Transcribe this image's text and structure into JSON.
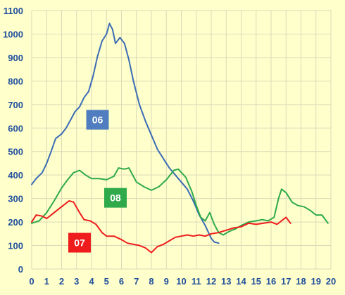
{
  "chart_data": {
    "type": "line",
    "title": "",
    "xlabel": "",
    "ylabel": "",
    "xlim": [
      0,
      20
    ],
    "ylim": [
      0,
      1100
    ],
    "x_ticks": [
      "0",
      "1",
      "2",
      "3",
      "4",
      "5",
      "6",
      "7",
      "8",
      "9",
      "10",
      "11",
      "12",
      "13",
      "14",
      "15",
      "16",
      "17",
      "18",
      "19",
      "20"
    ],
    "y_ticks": [
      "0",
      "100",
      "200",
      "300",
      "400",
      "500",
      "600",
      "700",
      "800",
      "900",
      "1000",
      "1100"
    ],
    "grid": true,
    "legend": "inline-labels",
    "series": [
      {
        "name": "06",
        "color": "#3a6bb5",
        "label_box_color": "#4f7dbf",
        "label_at": [
          4.4,
          635
        ],
        "points": [
          [
            0,
            360
          ],
          [
            0.3,
            385
          ],
          [
            0.7,
            410
          ],
          [
            1.0,
            450
          ],
          [
            1.3,
            500
          ],
          [
            1.6,
            555
          ],
          [
            2.0,
            575
          ],
          [
            2.3,
            600
          ],
          [
            2.6,
            635
          ],
          [
            2.9,
            670
          ],
          [
            3.2,
            690
          ],
          [
            3.5,
            730
          ],
          [
            3.8,
            755
          ],
          [
            4.1,
            820
          ],
          [
            4.4,
            905
          ],
          [
            4.7,
            970
          ],
          [
            5.0,
            1000
          ],
          [
            5.2,
            1045
          ],
          [
            5.4,
            1020
          ],
          [
            5.6,
            960
          ],
          [
            5.9,
            985
          ],
          [
            6.2,
            960
          ],
          [
            6.5,
            890
          ],
          [
            6.8,
            800
          ],
          [
            7.2,
            700
          ],
          [
            7.6,
            630
          ],
          [
            8.0,
            570
          ],
          [
            8.4,
            510
          ],
          [
            8.8,
            470
          ],
          [
            9.2,
            430
          ],
          [
            9.6,
            400
          ],
          [
            10.0,
            370
          ],
          [
            10.4,
            340
          ],
          [
            10.8,
            290
          ],
          [
            11.2,
            230
          ],
          [
            11.6,
            185
          ],
          [
            12.0,
            130
          ],
          [
            12.2,
            115
          ],
          [
            12.5,
            110
          ]
        ]
      },
      {
        "name": "08",
        "color": "#2eaa4a",
        "label_box_color": "#2eaa4a",
        "label_at": [
          5.6,
          303
        ],
        "points": [
          [
            0,
            195
          ],
          [
            0.5,
            205
          ],
          [
            1.0,
            240
          ],
          [
            1.5,
            290
          ],
          [
            2.0,
            345
          ],
          [
            2.4,
            380
          ],
          [
            2.8,
            410
          ],
          [
            3.2,
            420
          ],
          [
            3.6,
            400
          ],
          [
            4.0,
            385
          ],
          [
            4.5,
            385
          ],
          [
            5.0,
            380
          ],
          [
            5.5,
            395
          ],
          [
            5.8,
            430
          ],
          [
            6.2,
            425
          ],
          [
            6.5,
            430
          ],
          [
            7.0,
            370
          ],
          [
            7.5,
            350
          ],
          [
            8.0,
            335
          ],
          [
            8.5,
            350
          ],
          [
            9.0,
            380
          ],
          [
            9.5,
            420
          ],
          [
            9.8,
            425
          ],
          [
            10.3,
            390
          ],
          [
            10.7,
            330
          ],
          [
            11.0,
            270
          ],
          [
            11.3,
            220
          ],
          [
            11.6,
            205
          ],
          [
            11.9,
            240
          ],
          [
            12.2,
            190
          ],
          [
            12.5,
            155
          ],
          [
            12.8,
            145
          ],
          [
            13.2,
            160
          ],
          [
            13.6,
            170
          ],
          [
            14.0,
            185
          ],
          [
            14.5,
            200
          ],
          [
            15.0,
            205
          ],
          [
            15.4,
            210
          ],
          [
            15.8,
            205
          ],
          [
            16.2,
            220
          ],
          [
            16.5,
            300
          ],
          [
            16.7,
            340
          ],
          [
            17.0,
            325
          ],
          [
            17.4,
            285
          ],
          [
            17.8,
            270
          ],
          [
            18.2,
            265
          ],
          [
            18.6,
            250
          ],
          [
            19.0,
            230
          ],
          [
            19.4,
            230
          ],
          [
            19.8,
            195
          ]
        ]
      },
      {
        "name": "07",
        "color": "#ee1c1c",
        "label_box_color": "#ee1c1c",
        "label_at": [
          3.2,
          112
        ],
        "points": [
          [
            0,
            200
          ],
          [
            0.3,
            230
          ],
          [
            0.7,
            225
          ],
          [
            1.0,
            215
          ],
          [
            1.5,
            240
          ],
          [
            2.0,
            265
          ],
          [
            2.5,
            290
          ],
          [
            2.8,
            285
          ],
          [
            3.2,
            240
          ],
          [
            3.5,
            210
          ],
          [
            3.9,
            205
          ],
          [
            4.3,
            190
          ],
          [
            4.7,
            155
          ],
          [
            5.0,
            140
          ],
          [
            5.5,
            140
          ],
          [
            6.0,
            125
          ],
          [
            6.4,
            110
          ],
          [
            6.8,
            105
          ],
          [
            7.2,
            100
          ],
          [
            7.6,
            90
          ],
          [
            8.0,
            70
          ],
          [
            8.4,
            95
          ],
          [
            8.8,
            105
          ],
          [
            9.2,
            120
          ],
          [
            9.6,
            135
          ],
          [
            10.0,
            140
          ],
          [
            10.4,
            145
          ],
          [
            10.8,
            140
          ],
          [
            11.2,
            145
          ],
          [
            11.6,
            140
          ],
          [
            12.0,
            150
          ],
          [
            12.5,
            155
          ],
          [
            13.0,
            165
          ],
          [
            13.5,
            175
          ],
          [
            14.0,
            180
          ],
          [
            14.5,
            195
          ],
          [
            15.0,
            190
          ],
          [
            15.5,
            195
          ],
          [
            16.0,
            200
          ],
          [
            16.4,
            190
          ],
          [
            16.8,
            210
          ],
          [
            17.0,
            220
          ],
          [
            17.3,
            195
          ]
        ]
      }
    ]
  }
}
